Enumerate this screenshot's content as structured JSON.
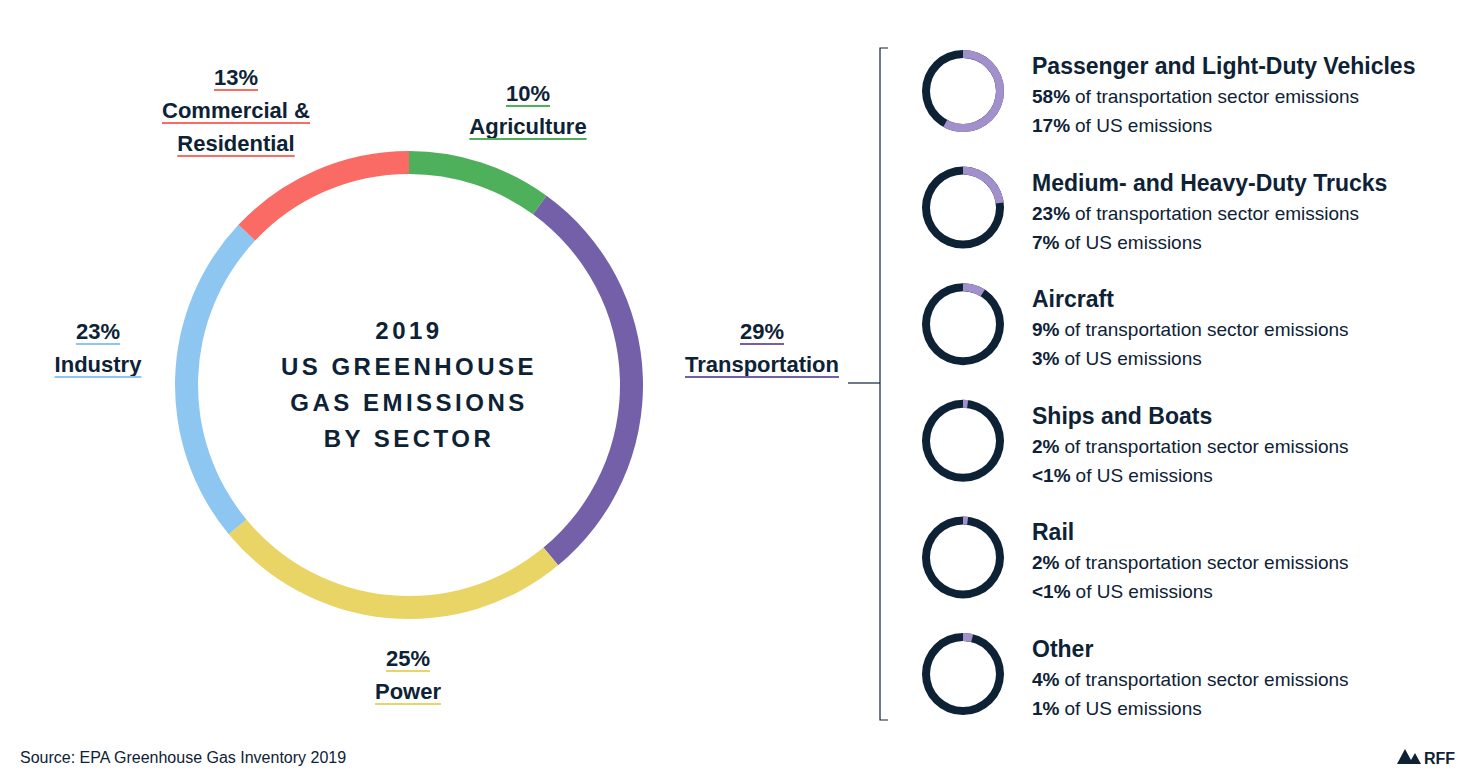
{
  "chart_data": [
    {
      "type": "donut",
      "title": [
        "2019",
        "US GREENHOUSE",
        "GAS EMISSIONS",
        "BY SECTOR"
      ],
      "categories": [
        "Agriculture",
        "Transportation",
        "Power",
        "Industry",
        "Commercial & Residential"
      ],
      "values": [
        10,
        29,
        25,
        23,
        13
      ],
      "value_labels": [
        "10%",
        "29%",
        "25%",
        "23%",
        "13%"
      ],
      "colors": [
        "#4fb05c",
        "#7360a8",
        "#e9d466",
        "#8dc6f1",
        "#fa6b66"
      ],
      "data_labels": true
    },
    {
      "type": "donut",
      "categories": [
        "Passenger and Light-Duty Vehicles",
        "Medium- and Heavy-Duty Trucks",
        "Aircraft",
        "Ships and Boats",
        "Rail",
        "Other"
      ],
      "values": [
        58,
        23,
        9,
        2,
        2,
        4
      ],
      "value_labels": [
        "58%",
        "23%",
        "9%",
        "2%",
        "2%",
        "4%"
      ],
      "value_caption": "of transportation sector emissions",
      "us_values": [
        17,
        7,
        3,
        0.5,
        0.5,
        1
      ],
      "us_value_labels": [
        "17%",
        "7%",
        "3%",
        "<1%",
        "<1%",
        "1%"
      ],
      "us_caption": "of US emissions",
      "color": "#a290cc",
      "data_labels": true
    }
  ],
  "source": "Source: EPA Greenhouse Gas Inventory 2019",
  "logo": "RFF"
}
